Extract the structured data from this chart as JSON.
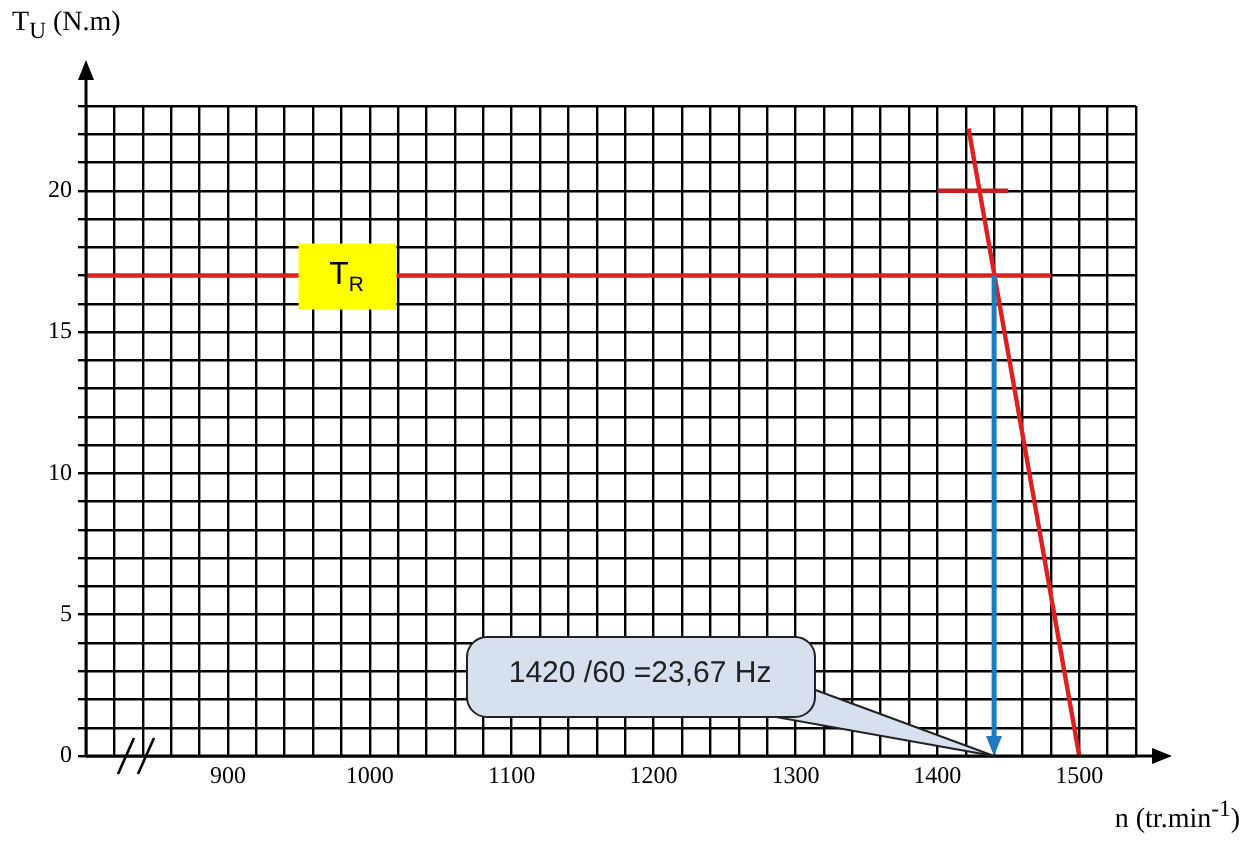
{
  "chart_data": {
    "type": "line",
    "xlabel": "n (tr.min$^{-1}$)",
    "ylabel": "T$_{U}$ (N.m)",
    "xlim": [
      800,
      1540
    ],
    "ylim": [
      0,
      23
    ],
    "xticks": [
      {
        "value": 800,
        "label": null
      },
      {
        "value": 820,
        "label": null
      },
      {
        "value": 840,
        "label": null
      },
      {
        "value": 860,
        "label": null
      },
      {
        "value": 880,
        "label": null
      },
      900,
      {
        "value": 920,
        "label": null
      },
      {
        "value": 940,
        "label": null
      },
      {
        "value": 960,
        "label": null
      },
      {
        "value": 980,
        "label": null
      },
      1000,
      {
        "value": 1020,
        "label": null
      },
      {
        "value": 1040,
        "label": null
      },
      {
        "value": 1060,
        "label": null
      },
      {
        "value": 1080,
        "label": null
      },
      1100,
      {
        "value": 1120,
        "label": null
      },
      {
        "value": 1140,
        "label": null
      },
      {
        "value": 1160,
        "label": null
      },
      {
        "value": 1180,
        "label": null
      },
      1200,
      {
        "value": 1220,
        "label": null
      },
      {
        "value": 1240,
        "label": null
      },
      {
        "value": 1260,
        "label": null
      },
      {
        "value": 1280,
        "label": null
      },
      1300,
      {
        "value": 1320,
        "label": null
      },
      {
        "value": 1340,
        "label": null
      },
      {
        "value": 1360,
        "label": null
      },
      {
        "value": 1380,
        "label": null
      },
      1400,
      {
        "value": 1420,
        "label": null
      },
      {
        "value": 1440,
        "label": null
      },
      {
        "value": 1460,
        "label": null
      },
      {
        "value": 1480,
        "label": null
      },
      1500,
      {
        "value": 1520,
        "label": null
      },
      {
        "value": 1540,
        "label": null
      }
    ],
    "yticks": [
      0,
      {
        "value": 1,
        "label": null
      },
      {
        "value": 2,
        "label": null
      },
      {
        "value": 3,
        "label": null
      },
      {
        "value": 4,
        "label": null
      },
      5,
      {
        "value": 6,
        "label": null
      },
      {
        "value": 7,
        "label": null
      },
      {
        "value": 8,
        "label": null
      },
      {
        "value": 9,
        "label": null
      },
      10,
      {
        "value": 11,
        "label": null
      },
      {
        "value": 12,
        "label": null
      },
      {
        "value": 13,
        "label": null
      },
      {
        "value": 14,
        "label": null
      },
      15,
      {
        "value": 16,
        "label": null
      },
      {
        "value": 17,
        "label": null
      },
      {
        "value": 18,
        "label": null
      },
      {
        "value": 19,
        "label": null
      },
      20,
      {
        "value": 21,
        "label": null
      },
      {
        "value": 22,
        "label": null
      },
      {
        "value": 23,
        "label": null
      }
    ],
    "grid": true,
    "marker": "none",
    "line_style": "solid",
    "series": [
      {
        "name": "T$_{R}$",
        "color": "#e02020",
        "x": [
          800,
          1480
        ],
        "values": [
          17,
          17
        ]
      },
      {
        "color": "#e02020",
        "x": [
          1422,
          1500
        ],
        "values": [
          22.2,
          0
        ]
      },
      {
        "color": "#c02020",
        "x": [
          1400,
          1450
        ],
        "values": [
          20,
          20
        ]
      }
    ],
    "ref_lines": [
      {
        "axis": "x",
        "value": 1440,
        "color": "#1f7bc0"
      }
    ],
    "annotations": [
      "1420 /60 =23,67 Hz"
    ]
  }
}
